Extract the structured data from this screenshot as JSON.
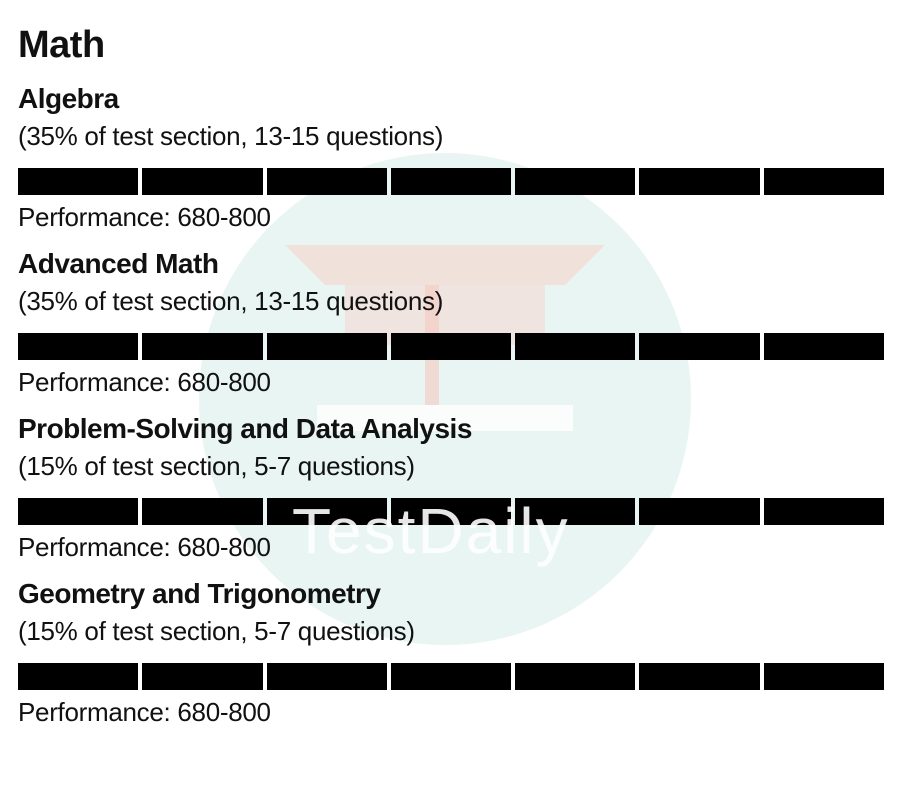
{
  "page": {
    "title": "Math",
    "watermark": "TestDaily"
  },
  "sections": [
    {
      "title": "Algebra",
      "subtitle": "(35% of test section, 13-15 questions)",
      "performance": "Performance: 680-800",
      "segments_filled": 7,
      "segments_total": 7
    },
    {
      "title": "Advanced Math",
      "subtitle": "(35% of test section, 13-15 questions)",
      "performance": "Performance: 680-800",
      "segments_filled": 7,
      "segments_total": 7
    },
    {
      "title": "Problem-Solving and Data Analysis",
      "subtitle": "(15% of test section, 5-7 questions)",
      "performance": "Performance: 680-800",
      "segments_filled": 7,
      "segments_total": 7
    },
    {
      "title": "Geometry and Trigonometry",
      "subtitle": "(15% of test section, 5-7 questions)",
      "performance": "Performance: 680-800",
      "segments_filled": 7,
      "segments_total": 7
    }
  ],
  "colors": {
    "bar": "#000000",
    "watermark_circle": "#e2f1ee",
    "watermark_cap": "#f3d9d2"
  }
}
